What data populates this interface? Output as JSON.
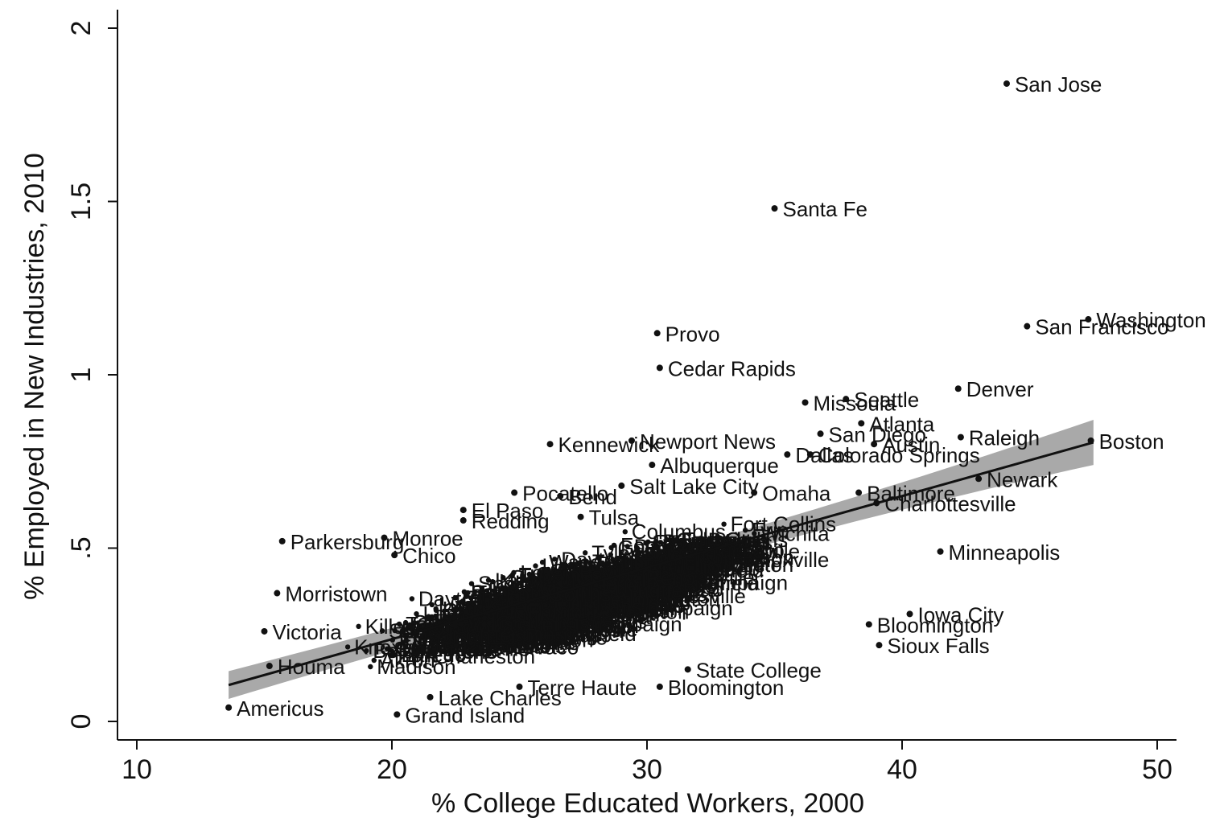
{
  "chart_data": {
    "type": "scatter",
    "title": "",
    "xlabel": "% College  Educated Workers, 2000",
    "ylabel": "% Employed in New Industries, 2010",
    "xlim": [
      9.5,
      50.5
    ],
    "ylim": [
      -0.05,
      2.05
    ],
    "xticks": [
      10,
      20,
      30,
      40,
      50
    ],
    "xtick_labels": [
      "10",
      "20",
      "30",
      "40",
      "50"
    ],
    "yticks": [
      0,
      0.5,
      1,
      1.5,
      2
    ],
    "ytick_labels": [
      "0",
      ".5",
      "1",
      "1.5",
      "2"
    ],
    "grid": false,
    "legend": "none",
    "colors": {
      "points": "#111111",
      "fit_line": "#111111",
      "ci_band": "#9a9a9a"
    },
    "fit": {
      "x": [
        13.6,
        47.5
      ],
      "y": [
        0.105,
        0.805
      ],
      "ci_halfwidth": [
        0.04,
        0.028,
        0.065
      ]
    },
    "labeled_points": [
      {
        "label": "San Jose",
        "x": 44.1,
        "y": 1.84
      },
      {
        "label": "Santa Fe",
        "x": 35.0,
        "y": 1.48
      },
      {
        "label": "Washington",
        "x": 47.3,
        "y": 1.16
      },
      {
        "label": "San Francisco",
        "x": 44.9,
        "y": 1.14
      },
      {
        "label": "Provo",
        "x": 30.4,
        "y": 1.12
      },
      {
        "label": "Cedar Rapids",
        "x": 30.5,
        "y": 1.02
      },
      {
        "label": "Denver",
        "x": 42.2,
        "y": 0.96
      },
      {
        "label": "Seattle",
        "x": 37.8,
        "y": 0.93
      },
      {
        "label": "Missoula",
        "x": 36.2,
        "y": 0.92
      },
      {
        "label": "Atlanta",
        "x": 38.4,
        "y": 0.86
      },
      {
        "label": "Raleigh",
        "x": 42.3,
        "y": 0.82
      },
      {
        "label": "San Diego",
        "x": 36.8,
        "y": 0.83
      },
      {
        "label": "Boston",
        "x": 47.4,
        "y": 0.81
      },
      {
        "label": "Austin",
        "x": 38.9,
        "y": 0.8
      },
      {
        "label": "Kennewick",
        "x": 26.2,
        "y": 0.8
      },
      {
        "label": "Newport News",
        "x": 29.4,
        "y": 0.81
      },
      {
        "label": "Dallas",
        "x": 35.5,
        "y": 0.77
      },
      {
        "label": "Colorado Springs",
        "x": 36.4,
        "y": 0.77
      },
      {
        "label": "Albuquerque",
        "x": 30.2,
        "y": 0.74
      },
      {
        "label": "Newark",
        "x": 43.0,
        "y": 0.7
      },
      {
        "label": "Salt Lake City",
        "x": 29.0,
        "y": 0.68
      },
      {
        "label": "Pocatello",
        "x": 24.8,
        "y": 0.66
      },
      {
        "label": "Omaha",
        "x": 34.2,
        "y": 0.66
      },
      {
        "label": "Baltimore",
        "x": 38.3,
        "y": 0.66
      },
      {
        "label": "Bend",
        "x": 26.6,
        "y": 0.65
      },
      {
        "label": "Charlottesville",
        "x": 39.0,
        "y": 0.63
      },
      {
        "label": "El Paso",
        "x": 22.8,
        "y": 0.61
      },
      {
        "label": "Tulsa",
        "x": 27.4,
        "y": 0.59
      },
      {
        "label": "Redding",
        "x": 22.8,
        "y": 0.58
      },
      {
        "label": "Parkersburg",
        "x": 15.7,
        "y": 0.52
      },
      {
        "label": "Monroe",
        "x": 19.7,
        "y": 0.53
      },
      {
        "label": "Minneapolis",
        "x": 41.5,
        "y": 0.49
      },
      {
        "label": "Chico",
        "x": 20.1,
        "y": 0.48
      },
      {
        "label": "Morristown",
        "x": 15.5,
        "y": 0.37
      },
      {
        "label": "Iowa City",
        "x": 40.3,
        "y": 0.31
      },
      {
        "label": "Bloomington",
        "x": 38.7,
        "y": 0.28
      },
      {
        "label": "Sioux Falls",
        "x": 39.1,
        "y": 0.22
      },
      {
        "label": "State College",
        "x": 31.6,
        "y": 0.15
      },
      {
        "label": "Bloomington",
        "x": 30.5,
        "y": 0.1
      },
      {
        "label": "Americus",
        "x": 13.6,
        "y": 0.04
      },
      {
        "label": "Grand Island",
        "x": 20.2,
        "y": 0.02
      },
      {
        "label": "Lake Charles",
        "x": 21.5,
        "y": 0.07
      },
      {
        "label": "Terre Haute",
        "x": 25.0,
        "y": 0.1
      },
      {
        "label": "Houma",
        "x": 15.2,
        "y": 0.16
      },
      {
        "label": "Victoria",
        "x": 15.0,
        "y": 0.26
      }
    ],
    "cloud_seed": 7,
    "cloud_count": 520,
    "cloud_labels": [
      "Charleston",
      "Columbus",
      "Rochester",
      "Lafayette",
      "Fort Collins",
      "Gainesville",
      "Lansing",
      "Madison",
      "Reno",
      "Fargo",
      "Champaign",
      "Lexington",
      "Knoxville",
      "Springfield",
      "Eugene",
      "Tucson",
      "Boise",
      "Spokane",
      "Wichita",
      "Toledo",
      "Dayton",
      "Akron",
      "Flint",
      "Erie",
      "Lima",
      "Yuma",
      "Waco",
      "Tyler",
      "Laredo",
      "Killeen"
    ]
  }
}
